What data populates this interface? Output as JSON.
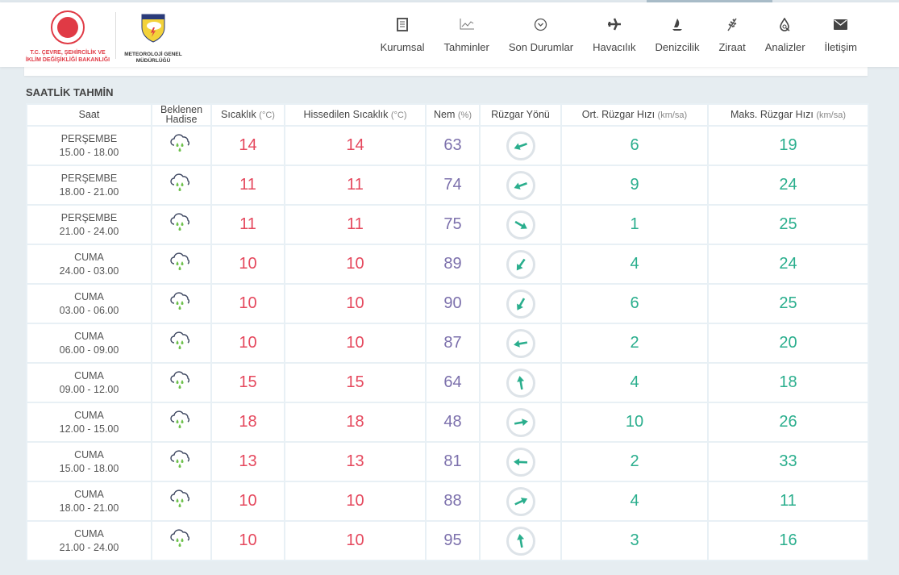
{
  "header": {
    "ministry_logo_text": "T.C. ÇEVRE, ŞEHİRCİLİK VE İKLİM DEĞİŞİKLİĞİ BAKANLIĞI",
    "mgm_logo_text": "METEOROLOJİ GENEL MÜDÜRLÜĞÜ",
    "nav": [
      {
        "label": "Kurumsal",
        "icon": "document-icon"
      },
      {
        "label": "Tahminler",
        "icon": "chart-icon"
      },
      {
        "label": "Son Durumlar",
        "icon": "chevron-circle-icon"
      },
      {
        "label": "Havacılık",
        "icon": "plane-icon"
      },
      {
        "label": "Denizcilik",
        "icon": "sailboat-icon"
      },
      {
        "label": "Ziraat",
        "icon": "wheat-icon"
      },
      {
        "label": "Analizler",
        "icon": "drop-search-icon"
      },
      {
        "label": "İletişim",
        "icon": "envelope-icon"
      }
    ]
  },
  "section_title": "SAATLİK TAHMİN",
  "colors": {
    "temp": "#e5485d",
    "humidity": "#7c70ac",
    "wind": "#2aae8d"
  },
  "table": {
    "headers": [
      {
        "label": "Saat",
        "unit": ""
      },
      {
        "label": "Beklenen Hadise",
        "unit": ""
      },
      {
        "label": "Sıcaklık",
        "unit": "(°C)"
      },
      {
        "label": "Hissedilen Sıcaklık",
        "unit": "(°C)"
      },
      {
        "label": "Nem",
        "unit": "(%)"
      },
      {
        "label": "Rüzgar Yönü",
        "unit": ""
      },
      {
        "label": "Ort. Rüzgar Hızı",
        "unit": "(km/sa)"
      },
      {
        "label": "Maks. Rüzgar Hızı",
        "unit": "(km/sa)"
      }
    ],
    "rows": [
      {
        "day": "PERŞEMBE",
        "time": "15.00 - 18.00",
        "event": "rain-icon",
        "temp": "14",
        "feels": "14",
        "humidity": "63",
        "wind_dir_deg": 250,
        "wind_avg": "6",
        "wind_max": "19"
      },
      {
        "day": "PERŞEMBE",
        "time": "18.00 - 21.00",
        "event": "rain-icon",
        "temp": "11",
        "feels": "11",
        "humidity": "74",
        "wind_dir_deg": 250,
        "wind_avg": "9",
        "wind_max": "24"
      },
      {
        "day": "PERŞEMBE",
        "time": "21.00 - 24.00",
        "event": "rain-icon",
        "temp": "11",
        "feels": "11",
        "humidity": "75",
        "wind_dir_deg": 120,
        "wind_avg": "1",
        "wind_max": "25"
      },
      {
        "day": "CUMA",
        "time": "24.00 - 03.00",
        "event": "rain-icon",
        "temp": "10",
        "feels": "10",
        "humidity": "89",
        "wind_dir_deg": 215,
        "wind_avg": "4",
        "wind_max": "24"
      },
      {
        "day": "CUMA",
        "time": "03.00 - 06.00",
        "event": "rain-icon",
        "temp": "10",
        "feels": "10",
        "humidity": "90",
        "wind_dir_deg": 210,
        "wind_avg": "6",
        "wind_max": "25"
      },
      {
        "day": "CUMA",
        "time": "06.00 - 09.00",
        "event": "rain-icon",
        "temp": "10",
        "feels": "10",
        "humidity": "87",
        "wind_dir_deg": 260,
        "wind_avg": "2",
        "wind_max": "20"
      },
      {
        "day": "CUMA",
        "time": "09.00 - 12.00",
        "event": "rain-icon",
        "temp": "15",
        "feels": "15",
        "humidity": "64",
        "wind_dir_deg": 350,
        "wind_avg": "4",
        "wind_max": "18"
      },
      {
        "day": "CUMA",
        "time": "12.00 - 15.00",
        "event": "rain-icon",
        "temp": "18",
        "feels": "18",
        "humidity": "48",
        "wind_dir_deg": 80,
        "wind_avg": "10",
        "wind_max": "26"
      },
      {
        "day": "CUMA",
        "time": "15.00 - 18.00",
        "event": "rain-icon",
        "temp": "13",
        "feels": "13",
        "humidity": "81",
        "wind_dir_deg": 272,
        "wind_avg": "2",
        "wind_max": "33"
      },
      {
        "day": "CUMA",
        "time": "18.00 - 21.00",
        "event": "rain-icon",
        "temp": "10",
        "feels": "10",
        "humidity": "88",
        "wind_dir_deg": 65,
        "wind_avg": "4",
        "wind_max": "11"
      },
      {
        "day": "CUMA",
        "time": "21.00 - 24.00",
        "event": "rain-icon",
        "temp": "10",
        "feels": "10",
        "humidity": "95",
        "wind_dir_deg": 350,
        "wind_avg": "3",
        "wind_max": "16"
      }
    ]
  }
}
